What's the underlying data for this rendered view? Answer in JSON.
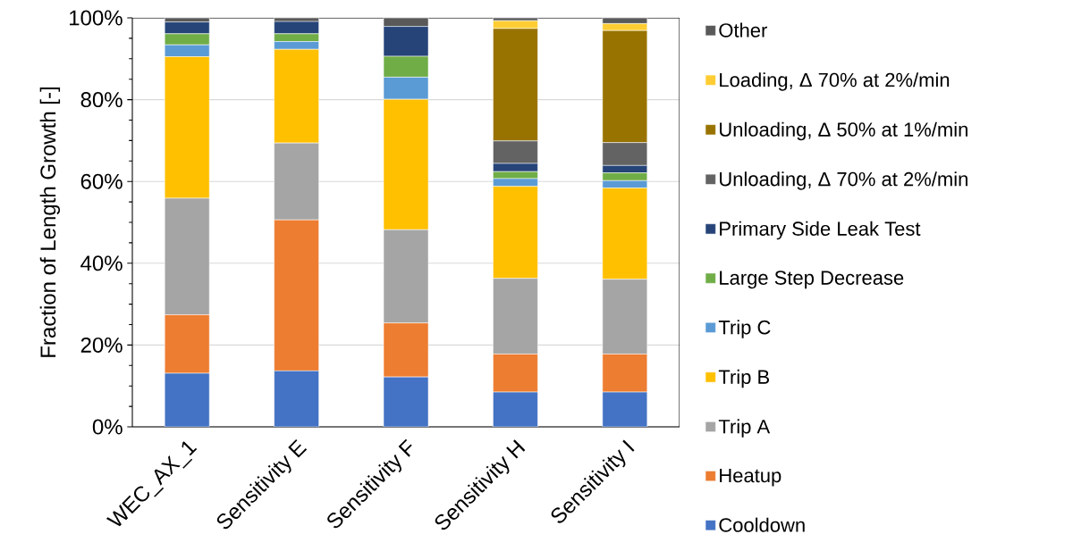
{
  "chart_data": {
    "type": "bar",
    "stacked": true,
    "ylabel": "Fraction of Length Growth [-]",
    "categories": [
      "WEC_AX_1",
      "Sensitivity E",
      "Sensitivity F",
      "Sensitivity H",
      "Sensitivity I"
    ],
    "series": [
      {
        "name": "Cooldown",
        "color": "#4472c4",
        "values": [
          13.1,
          13.7,
          12.2,
          8.5,
          8.5
        ]
      },
      {
        "name": "Heatup",
        "color": "#ed7d31",
        "values": [
          14.3,
          36.9,
          13.2,
          9.3,
          9.3
        ]
      },
      {
        "name": "Trip A",
        "color": "#a5a5a5",
        "values": [
          28.5,
          18.8,
          22.8,
          18.5,
          18.3
        ]
      },
      {
        "name": "Trip B",
        "color": "#ffc000",
        "values": [
          34.6,
          22.9,
          31.9,
          22.5,
          22.3
        ]
      },
      {
        "name": "Trip C",
        "color": "#5b9bd5",
        "values": [
          2.9,
          1.9,
          5.4,
          1.9,
          1.8
        ]
      },
      {
        "name": "Large Step Decrease",
        "color": "#70ad47",
        "values": [
          2.7,
          1.9,
          5.1,
          1.7,
          1.9
        ]
      },
      {
        "name": "Primary Side Leak Test",
        "color": "#264478",
        "values": [
          2.9,
          3.0,
          7.3,
          2.0,
          1.8
        ]
      },
      {
        "name": "Unloading, Δ 70% at 2%/min",
        "color": "#636363",
        "values": [
          0,
          0,
          0,
          5.5,
          5.6
        ]
      },
      {
        "name": "Unloading, Δ 50% at 1%/min",
        "color": "#997300",
        "values": [
          0,
          0,
          0,
          27.5,
          27.4
        ]
      },
      {
        "name": "Loading, Δ 70% at 2%/min",
        "color": "#ffcd33",
        "values": [
          0,
          0,
          0,
          1.9,
          1.7
        ]
      },
      {
        "name": "Other",
        "color": "#595959",
        "values": [
          1.0,
          0.9,
          2.1,
          0.7,
          1.4
        ]
      }
    ],
    "ylim": [
      0,
      100
    ],
    "yticks": [
      {
        "value": 0,
        "label": "0%"
      },
      {
        "value": 20,
        "label": "20%"
      },
      {
        "value": 40,
        "label": "40%"
      },
      {
        "value": 60,
        "label": "60%"
      },
      {
        "value": 80,
        "label": "80%"
      },
      {
        "value": 100,
        "label": "100%"
      }
    ],
    "grid": "y",
    "legend": "right"
  }
}
